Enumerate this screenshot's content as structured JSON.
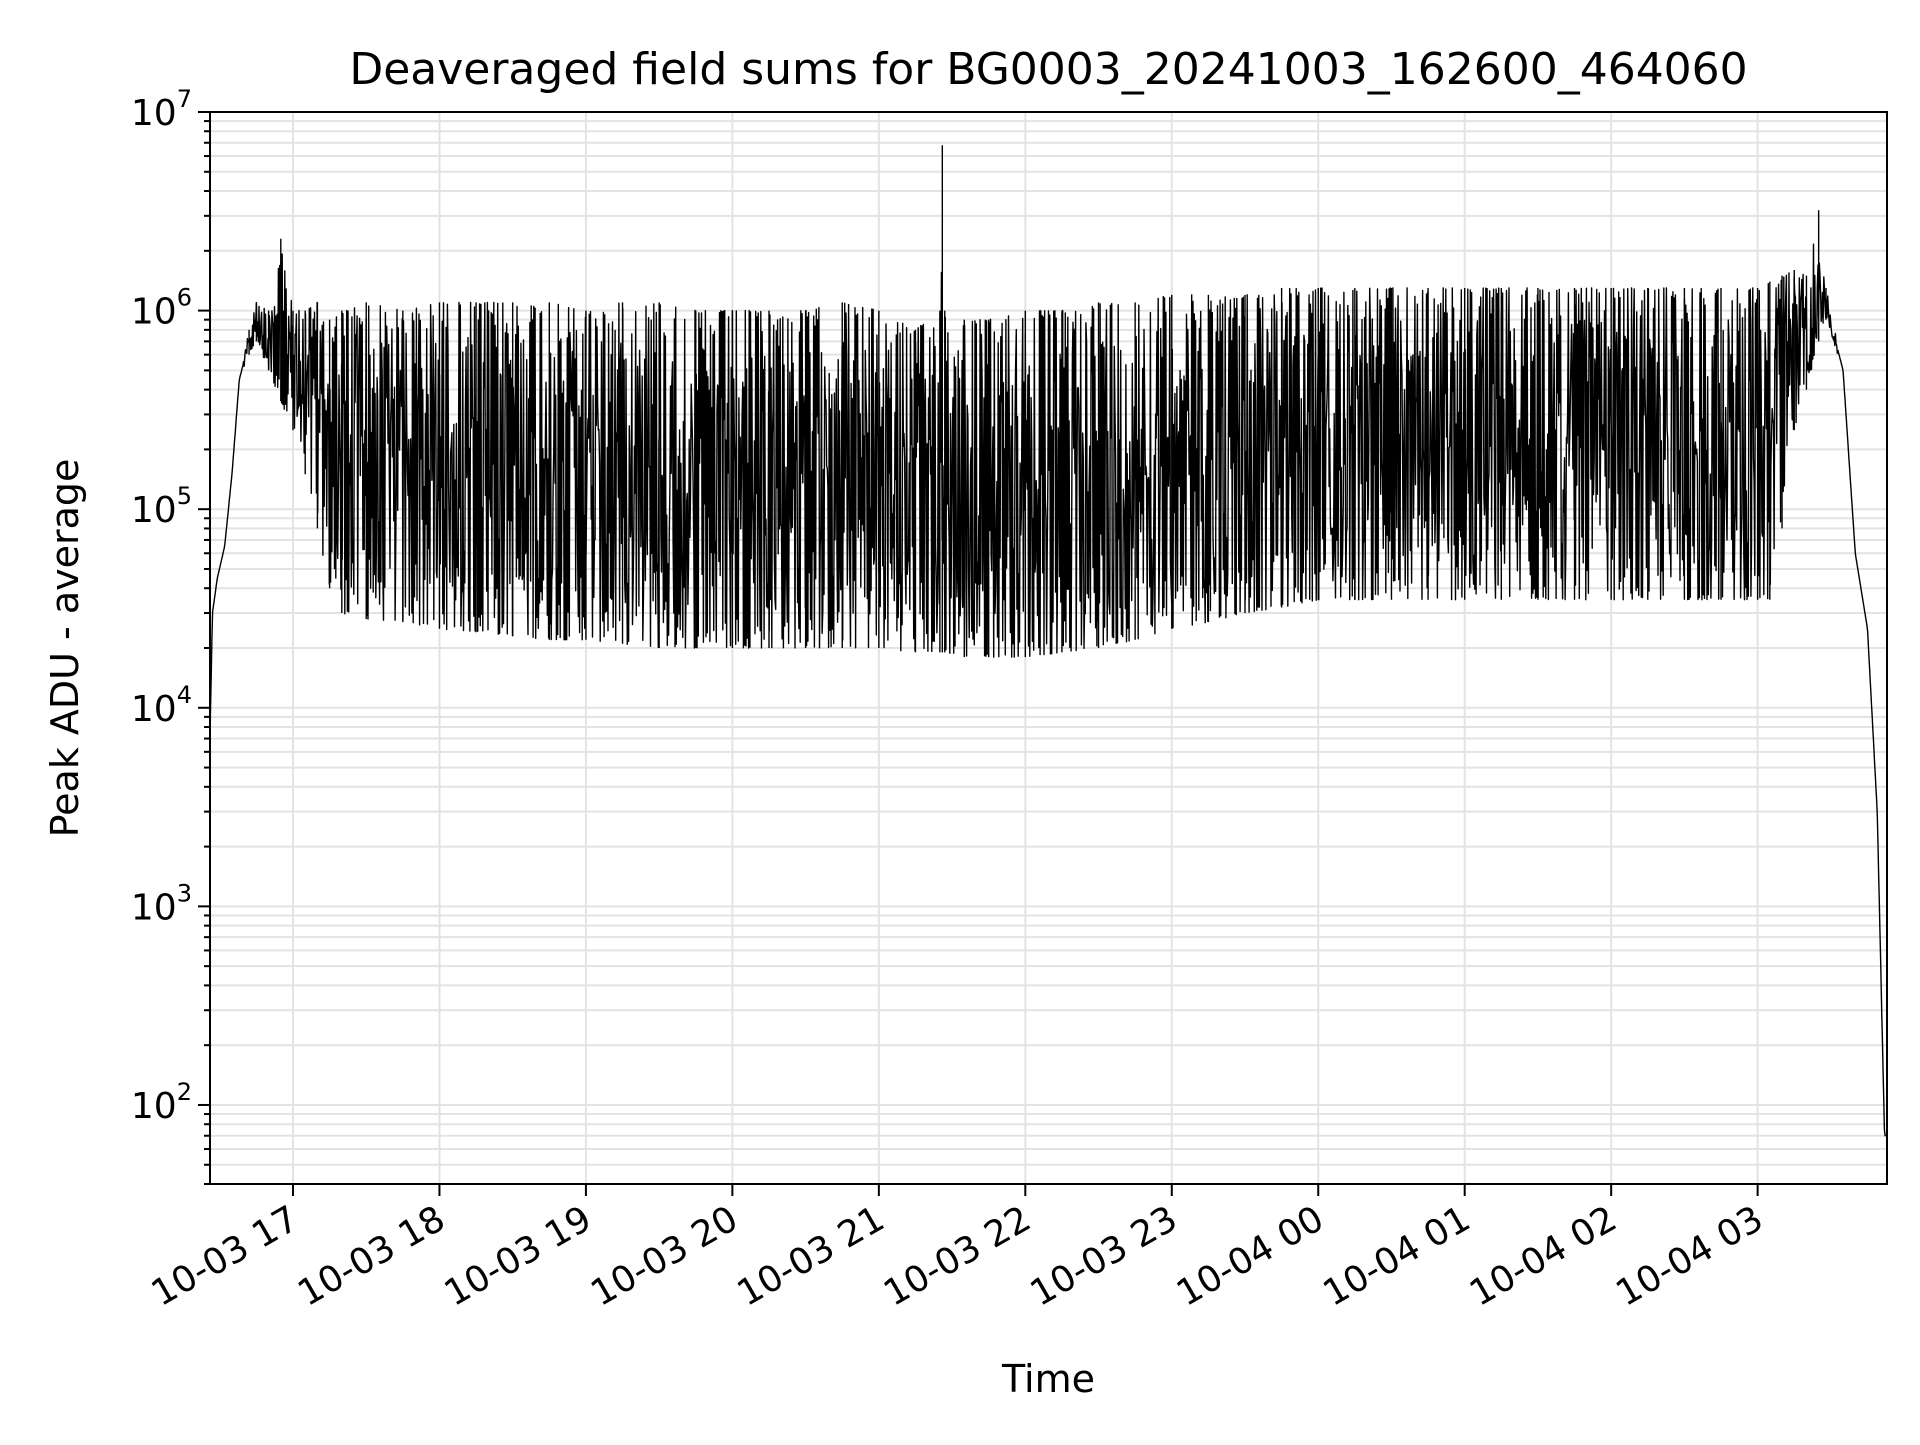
{
  "chart_data": {
    "type": "line",
    "title": "Deaveraged field sums for BG0003_20241003_162600_464060",
    "xlabel": "Time",
    "ylabel": "Peak ADU - average",
    "yscale": "log",
    "grid": true,
    "xlim": [
      "2024-10-03T16:26:00",
      "2024-10-04T03:53:00"
    ],
    "ylim": [
      40,
      10000000
    ],
    "x_ticks": [
      {
        "value": "2024-10-03T17:00:00",
        "label": "10-03 17"
      },
      {
        "value": "2024-10-03T18:00:00",
        "label": "10-03 18"
      },
      {
        "value": "2024-10-03T19:00:00",
        "label": "10-03 19"
      },
      {
        "value": "2024-10-03T20:00:00",
        "label": "10-03 20"
      },
      {
        "value": "2024-10-03T21:00:00",
        "label": "10-03 21"
      },
      {
        "value": "2024-10-03T22:00:00",
        "label": "10-03 22"
      },
      {
        "value": "2024-10-03T23:00:00",
        "label": "10-03 23"
      },
      {
        "value": "2024-10-04T00:00:00",
        "label": "10-04 00"
      },
      {
        "value": "2024-10-04T01:00:00",
        "label": "10-04 01"
      },
      {
        "value": "2024-10-04T02:00:00",
        "label": "10-04 02"
      },
      {
        "value": "2024-10-04T03:00:00",
        "label": "10-04 03"
      }
    ],
    "y_ticks": [
      {
        "value": 100,
        "base": "10",
        "exp": "2"
      },
      {
        "value": 1000,
        "base": "10",
        "exp": "3"
      },
      {
        "value": 10000,
        "base": "10",
        "exp": "4"
      },
      {
        "value": 100000,
        "base": "10",
        "exp": "5"
      },
      {
        "value": 1000000,
        "base": "10",
        "exp": "6"
      },
      {
        "value": 10000000,
        "base": "10",
        "exp": "7"
      }
    ],
    "series": [
      {
        "color": "#000000",
        "x": [
          "2024-10-03T16:26:00",
          "2024-10-03T16:27:00",
          "2024-10-03T16:29:00",
          "2024-10-03T16:32:00",
          "2024-10-03T16:35:00",
          "2024-10-03T16:38:00",
          "2024-10-03T16:42:00",
          "2024-10-03T16:45:00",
          "2024-10-03T16:50:00",
          "2024-10-03T16:55:00",
          "2024-10-03T17:00:00",
          "2024-10-03T17:05:00",
          "2024-10-03T17:10:00",
          "2024-10-03T17:15:00",
          "2024-10-03T17:20:00",
          "2024-10-03T17:30:00",
          "2024-10-03T17:45:00",
          "2024-10-03T18:00:00",
          "2024-10-03T18:15:00",
          "2024-10-03T18:30:00",
          "2024-10-03T18:45:00",
          "2024-10-03T19:00:00",
          "2024-10-03T19:15:00",
          "2024-10-03T19:30:00",
          "2024-10-03T19:45:00",
          "2024-10-03T20:00:00",
          "2024-10-03T20:15:00",
          "2024-10-03T20:30:00",
          "2024-10-03T20:45:00",
          "2024-10-03T21:00:00",
          "2024-10-03T21:15:00",
          "2024-10-03T21:25:00",
          "2024-10-03T21:26:00",
          "2024-10-03T21:27:00",
          "2024-10-03T21:35:00",
          "2024-10-03T21:45:00",
          "2024-10-03T22:00:00",
          "2024-10-03T22:15:00",
          "2024-10-03T22:30:00",
          "2024-10-03T22:45:00",
          "2024-10-03T23:00:00",
          "2024-10-03T23:15:00",
          "2024-10-03T23:30:00",
          "2024-10-03T23:45:00",
          "2024-10-04T00:00:00",
          "2024-10-04T00:15:00",
          "2024-10-04T00:30:00",
          "2024-10-04T00:45:00",
          "2024-10-04T01:00:00",
          "2024-10-04T01:15:00",
          "2024-10-04T01:30:00",
          "2024-10-04T01:45:00",
          "2024-10-04T02:00:00",
          "2024-10-04T02:15:00",
          "2024-10-04T02:30:00",
          "2024-10-04T02:45:00",
          "2024-10-04T03:00:00",
          "2024-10-04T03:05:00",
          "2024-10-04T03:10:00",
          "2024-10-04T03:15:00",
          "2024-10-04T03:20:00",
          "2024-10-04T03:25:00",
          "2024-10-04T03:28:00",
          "2024-10-04T03:35:00",
          "2024-10-04T03:40:00",
          "2024-10-04T03:45:00",
          "2024-10-04T03:49:00",
          "2024-10-04T03:52:00"
        ],
        "upper": [
          7000,
          30000,
          45000,
          65000,
          150000,
          450000,
          800000,
          1100000,
          1000000,
          2300000,
          1000000,
          1000000,
          1100000,
          900000,
          1000000,
          1100000,
          1000000,
          1100000,
          1100000,
          1100000,
          1100000,
          1000000,
          1100000,
          1100000,
          1000000,
          1000000,
          1000000,
          1000000,
          1100000,
          1000000,
          800000,
          1000000,
          6800000,
          1000000,
          900000,
          900000,
          1000000,
          1000000,
          1100000,
          1100000,
          1200000,
          1200000,
          1200000,
          1300000,
          1300000,
          1300000,
          1300000,
          1300000,
          1300000,
          1300000,
          1300000,
          1300000,
          1300000,
          1300000,
          1300000,
          1300000,
          1300000,
          1400000,
          1500000,
          1600000,
          1500000,
          3200000,
          1300000,
          500000,
          60000,
          25000,
          3000,
          70
        ],
        "lower": [
          7000,
          30000,
          45000,
          65000,
          150000,
          450000,
          600000,
          700000,
          500000,
          350000,
          250000,
          150000,
          80000,
          40000,
          30000,
          28000,
          27000,
          25000,
          24000,
          23000,
          22000,
          22000,
          21000,
          20000,
          20000,
          20000,
          20000,
          20000,
          20000,
          20000,
          19000,
          19000,
          19000,
          19000,
          18000,
          18000,
          18000,
          19000,
          20000,
          22000,
          25000,
          27000,
          30000,
          32000,
          35000,
          35000,
          35000,
          35000,
          35000,
          35000,
          35000,
          35000,
          35000,
          35000,
          35000,
          35000,
          35000,
          35000,
          80000,
          250000,
          400000,
          700000,
          900000,
          500000,
          60000,
          25000,
          3000,
          70
        ]
      }
    ]
  }
}
